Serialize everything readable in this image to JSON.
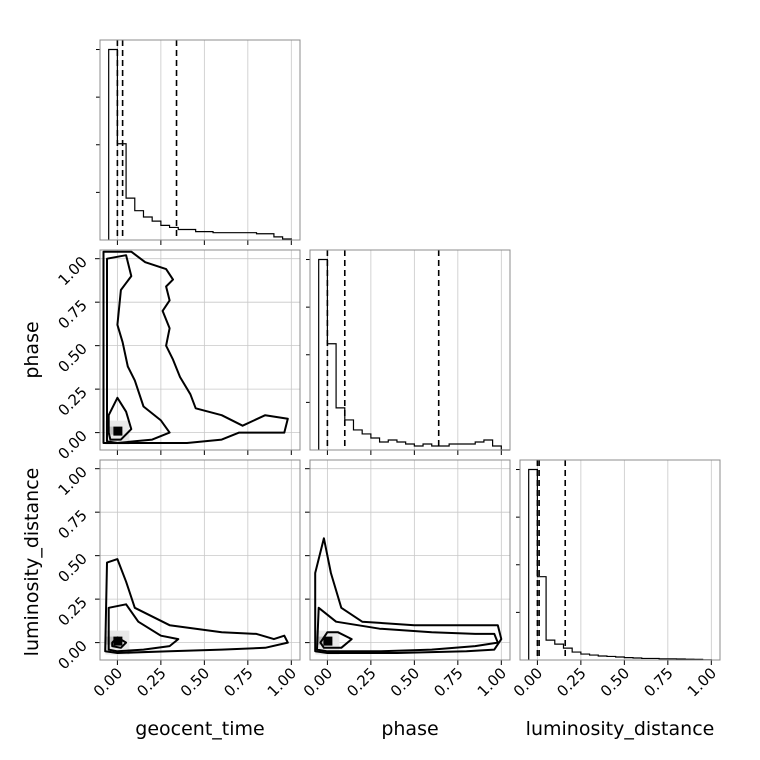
{
  "chart_data": {
    "type": "corner",
    "parameters": [
      "geocent_time",
      "phase",
      "luminosity_distance"
    ],
    "xlabels": [
      "geocent_time",
      "phase",
      "luminosity_distance"
    ],
    "ylabels": [
      "",
      "phase",
      "luminosity_distance"
    ],
    "range": [
      -0.1,
      1.05
    ],
    "ticks": [
      0.0,
      0.25,
      0.5,
      0.75,
      1.0
    ],
    "tick_labels": [
      "0.00",
      "0.25",
      "0.50",
      "0.75",
      "1.00"
    ],
    "grid": true,
    "quantiles": {
      "geocent_time": [
        0.0,
        0.03,
        0.34
      ],
      "phase": [
        0.0,
        0.1,
        0.64
      ],
      "luminosity_distance": [
        0.0,
        0.01,
        0.16
      ]
    },
    "histograms": {
      "geocent_time": {
        "edges": [
          -0.05,
          0.0,
          0.05,
          0.1,
          0.15,
          0.2,
          0.25,
          0.3,
          0.35,
          0.4,
          0.45,
          0.5,
          0.55,
          0.6,
          0.65,
          0.7,
          0.75,
          0.8,
          0.85,
          0.9,
          0.95,
          1.0
        ],
        "counts": [
          0.91,
          0.46,
          0.2,
          0.14,
          0.11,
          0.09,
          0.07,
          0.06,
          0.05,
          0.05,
          0.04,
          0.04,
          0.035,
          0.035,
          0.035,
          0.035,
          0.035,
          0.03,
          0.03,
          0.015,
          0.005
        ]
      },
      "phase": {
        "edges": [
          -0.05,
          0.0,
          0.05,
          0.1,
          0.15,
          0.2,
          0.25,
          0.3,
          0.35,
          0.4,
          0.45,
          0.5,
          0.55,
          0.6,
          0.65,
          0.7,
          0.75,
          0.8,
          0.85,
          0.9,
          0.95,
          1.0,
          1.05
        ],
        "counts": [
          0.95,
          0.53,
          0.21,
          0.15,
          0.1,
          0.08,
          0.06,
          0.04,
          0.05,
          0.04,
          0.03,
          0.02,
          0.03,
          0.02,
          0.02,
          0.03,
          0.03,
          0.03,
          0.04,
          0.05,
          0.02,
          0.0
        ]
      },
      "luminosity_distance": {
        "edges": [
          -0.05,
          0.0,
          0.05,
          0.1,
          0.15,
          0.2,
          0.25,
          0.3,
          0.35,
          0.4,
          0.45,
          0.5,
          0.55,
          0.6,
          0.65,
          0.7,
          0.75,
          0.8,
          0.85,
          0.9,
          0.95,
          1.0
        ],
        "counts": [
          0.96,
          0.42,
          0.1,
          0.08,
          0.06,
          0.04,
          0.03,
          0.025,
          0.02,
          0.018,
          0.015,
          0.012,
          0.01,
          0.008,
          0.008,
          0.006,
          0.006,
          0.005,
          0.004,
          0.003,
          0.001
        ]
      }
    },
    "contours": {
      "phase_vs_geocent_time": [
        [
          [
            -0.05,
            0.0
          ],
          [
            -0.05,
            0.1
          ],
          [
            0.0,
            0.2
          ],
          [
            0.05,
            0.12
          ],
          [
            0.08,
            0.02
          ],
          [
            0.02,
            -0.04
          ],
          [
            -0.04,
            -0.04
          ]
        ],
        [
          [
            -0.06,
            -0.05
          ],
          [
            -0.06,
            1.0
          ],
          [
            0.05,
            1.02
          ],
          [
            0.08,
            0.9
          ],
          [
            0.02,
            0.82
          ],
          [
            0.0,
            0.62
          ],
          [
            0.03,
            0.52
          ],
          [
            0.06,
            0.38
          ],
          [
            0.1,
            0.3
          ],
          [
            0.15,
            0.15
          ],
          [
            0.25,
            0.07
          ],
          [
            0.3,
            0.0
          ],
          [
            0.2,
            -0.04
          ],
          [
            0.1,
            -0.05
          ],
          [
            0.0,
            -0.06
          ]
        ],
        [
          [
            -0.08,
            -0.06
          ],
          [
            -0.08,
            1.04
          ],
          [
            0.08,
            1.04
          ],
          [
            0.16,
            0.98
          ],
          [
            0.28,
            0.94
          ],
          [
            0.32,
            0.88
          ],
          [
            0.28,
            0.84
          ],
          [
            0.3,
            0.76
          ],
          [
            0.26,
            0.7
          ],
          [
            0.3,
            0.6
          ],
          [
            0.28,
            0.5
          ],
          [
            0.32,
            0.42
          ],
          [
            0.36,
            0.32
          ],
          [
            0.42,
            0.22
          ],
          [
            0.45,
            0.14
          ],
          [
            0.6,
            0.1
          ],
          [
            0.72,
            0.04
          ],
          [
            0.85,
            0.1
          ],
          [
            0.98,
            0.08
          ],
          [
            0.96,
            0.0
          ],
          [
            0.7,
            0.0
          ],
          [
            0.6,
            -0.04
          ],
          [
            0.4,
            -0.06
          ],
          [
            0.2,
            -0.06
          ],
          [
            0.0,
            -0.06
          ]
        ]
      ],
      "luminosity_distance_vs_geocent_time": [
        [
          [
            -0.03,
            0.0
          ],
          [
            0.0,
            0.03
          ],
          [
            0.05,
            0.0
          ],
          [
            0.02,
            -0.03
          ],
          [
            -0.03,
            -0.02
          ]
        ],
        [
          [
            -0.05,
            -0.04
          ],
          [
            -0.05,
            0.2
          ],
          [
            0.05,
            0.22
          ],
          [
            0.12,
            0.12
          ],
          [
            0.25,
            0.04
          ],
          [
            0.35,
            0.02
          ],
          [
            0.3,
            -0.02
          ],
          [
            0.15,
            -0.04
          ],
          [
            0.0,
            -0.05
          ]
        ],
        [
          [
            -0.07,
            -0.05
          ],
          [
            -0.06,
            0.46
          ],
          [
            0.0,
            0.48
          ],
          [
            0.05,
            0.35
          ],
          [
            0.1,
            0.2
          ],
          [
            0.3,
            0.1
          ],
          [
            0.6,
            0.06
          ],
          [
            0.8,
            0.05
          ],
          [
            0.9,
            0.02
          ],
          [
            0.96,
            0.04
          ],
          [
            0.98,
            0.0
          ],
          [
            0.85,
            -0.03
          ],
          [
            0.6,
            -0.04
          ],
          [
            0.3,
            -0.05
          ],
          [
            0.0,
            -0.06
          ]
        ]
      ],
      "luminosity_distance_vs_phase": [
        [
          [
            -0.04,
            0.0
          ],
          [
            0.0,
            0.06
          ],
          [
            0.06,
            0.06
          ],
          [
            0.14,
            0.02
          ],
          [
            0.08,
            -0.03
          ],
          [
            -0.02,
            -0.03
          ]
        ],
        [
          [
            -0.06,
            -0.04
          ],
          [
            -0.05,
            0.2
          ],
          [
            0.05,
            0.12
          ],
          [
            0.3,
            0.08
          ],
          [
            0.6,
            0.06
          ],
          [
            0.85,
            0.05
          ],
          [
            0.96,
            0.05
          ],
          [
            0.98,
            0.0
          ],
          [
            0.85,
            -0.02
          ],
          [
            0.6,
            -0.04
          ],
          [
            0.3,
            -0.05
          ],
          [
            0.0,
            -0.05
          ]
        ],
        [
          [
            -0.07,
            -0.05
          ],
          [
            -0.07,
            0.4
          ],
          [
            -0.02,
            0.6
          ],
          [
            0.02,
            0.4
          ],
          [
            0.08,
            0.2
          ],
          [
            0.2,
            0.12
          ],
          [
            0.5,
            0.1
          ],
          [
            0.8,
            0.1
          ],
          [
            0.98,
            0.1
          ],
          [
            1.0,
            0.02
          ],
          [
            0.96,
            -0.04
          ],
          [
            0.8,
            -0.05
          ],
          [
            0.4,
            -0.06
          ],
          [
            0.0,
            -0.06
          ]
        ]
      ]
    },
    "density_peak": {
      "phase_vs_geocent_time": [
        0.0,
        0.0
      ],
      "luminosity_distance_vs_geocent_time": [
        0.0,
        0.0
      ],
      "luminosity_distance_vs_phase": [
        0.0,
        0.0
      ]
    }
  }
}
